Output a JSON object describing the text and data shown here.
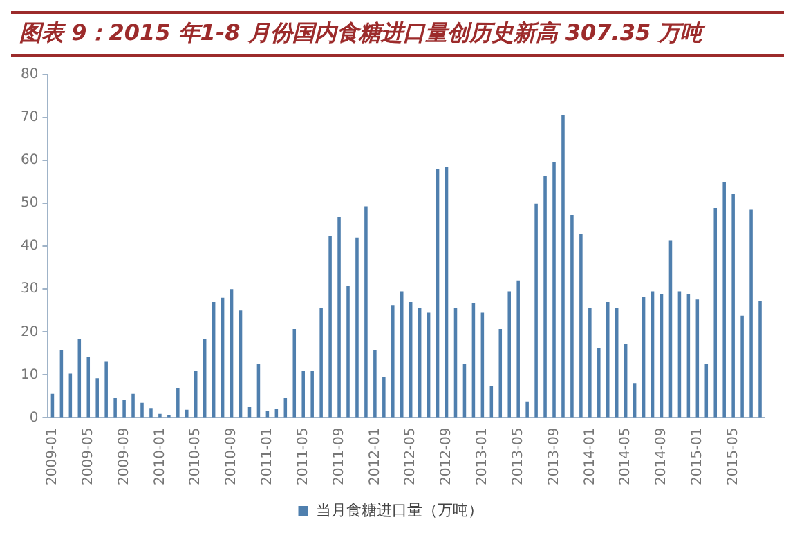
{
  "chart_data": {
    "type": "bar",
    "title": "图表 9：2015 年1-8 月份国内食糖进口量创历史新高 307.35 万吨",
    "categories": [
      "2009-01",
      null,
      null,
      null,
      "2009-05",
      null,
      null,
      null,
      "2009-09",
      null,
      null,
      null,
      "2010-01",
      null,
      null,
      null,
      "2010-05",
      null,
      null,
      null,
      "2010-09",
      null,
      null,
      null,
      "2011-01",
      null,
      null,
      null,
      "2011-05",
      null,
      null,
      null,
      "2011-09",
      null,
      null,
      null,
      "2012-01",
      null,
      null,
      null,
      "2012-05",
      null,
      null,
      null,
      "2012-09",
      null,
      null,
      null,
      "2013-01",
      null,
      null,
      null,
      "2013-05",
      null,
      null,
      null,
      "2013-09",
      null,
      null,
      null,
      "2014-01",
      null,
      null,
      null,
      "2014-05",
      null,
      null,
      null,
      "2014-09",
      null,
      null,
      null,
      "2015-01",
      null,
      null,
      null,
      "2015-05",
      null,
      null,
      null
    ],
    "series": [
      {
        "name": "当月食糖进口量（万吨）",
        "color": "#4f7fae",
        "values": [
          5.6,
          15.7,
          10.3,
          18.4,
          14.2,
          9.2,
          13.2,
          4.6,
          4.1,
          5.6,
          3.5,
          2.3,
          0.9,
          0.6,
          7,
          1.9,
          11,
          18.4,
          27,
          28,
          30,
          25,
          2.5,
          12.5,
          1.6,
          2.1,
          4.6,
          20.7,
          11,
          11,
          25.7,
          42.3,
          46.8,
          30.7,
          42,
          49.3,
          15.7,
          9.4,
          26.3,
          29.5,
          27,
          25.7,
          24.5,
          58,
          58.5,
          25.7,
          12.5,
          26.7,
          24.5,
          7.5,
          20.7,
          29.5,
          32,
          3.8,
          49.9,
          56.4,
          59.6,
          70.5,
          47.3,
          42.9,
          25.7,
          16.3,
          27,
          25.7,
          17.2,
          8.1,
          28.2,
          29.5,
          28.8,
          41.4,
          29.5,
          28.8,
          27.6,
          12.5,
          48.9,
          54.9,
          52.3,
          23.8,
          48.5,
          27.3
        ]
      }
    ],
    "ylim": [
      0,
      80
    ],
    "yticks": [
      0,
      10,
      20,
      30,
      40,
      50,
      60,
      70,
      80
    ],
    "grid": false,
    "legend": "bottom"
  }
}
